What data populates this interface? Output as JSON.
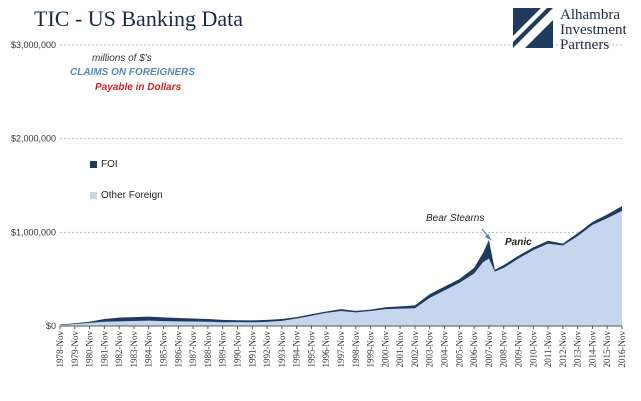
{
  "header": {
    "title": "TIC - US Banking Data"
  },
  "logo": {
    "line1": "Alhambra",
    "line2": "Investment",
    "line3": "Partners"
  },
  "notes": {
    "units": "millions of $'s",
    "subtitle": "CLAIMS  ON FOREIGNERS",
    "payable": "Payable  in Dollars"
  },
  "annotations": {
    "bear": "Bear Stearns",
    "panic": "Panic"
  },
  "colors": {
    "foi": "#1f3a5f",
    "other": "#c5d6ee",
    "grid": "#bbbbbb"
  },
  "chart_data": {
    "type": "area",
    "title": "TIC - US Banking Data",
    "ylim": [
      0,
      3000000
    ],
    "yticks": [
      0,
      1000000,
      2000000,
      3000000
    ],
    "ytick_labels": [
      "$0",
      "$1,000,000",
      "$2,000,000",
      "$3,000,000"
    ],
    "grid": "horizontal",
    "legend_position": "left",
    "x_tick_labels": [
      "1978-Nov",
      "1979-Nov",
      "1980-Nov",
      "1981-Nov",
      "1982-Nov",
      "1983-Nov",
      "1984-Nov",
      "1985-Nov",
      "1986-Nov",
      "1987-Nov",
      "1988-Nov",
      "1989-Nov",
      "1990-Nov",
      "1991-Nov",
      "1992-Nov",
      "1993-Nov",
      "1994-Nov",
      "1995-Nov",
      "1996-Nov",
      "1997-Nov",
      "1998-Nov",
      "1999-Nov",
      "2000-Nov",
      "2001-Nov",
      "2002-Nov",
      "2003-Nov",
      "2004-Nov",
      "2005-Nov",
      "2006-Nov",
      "2007-Nov",
      "2008-Nov",
      "2009-Nov",
      "2010-Nov",
      "2011-Nov",
      "2012-Nov",
      "2013-Nov",
      "2014-Nov",
      "2015-Nov",
      "2016-Nov"
    ],
    "x": [
      1978.9,
      1979.9,
      1980.9,
      1981.9,
      1982.9,
      1983.9,
      1984.9,
      1985.9,
      1986.9,
      1987.9,
      1988.9,
      1989.9,
      1990.9,
      1991.9,
      1992.9,
      1993.9,
      1994.9,
      1995.9,
      1996.9,
      1997.9,
      1998.9,
      1999.9,
      2000.9,
      2001.9,
      2002.9,
      2003.9,
      2004.9,
      2005.9,
      2006.9,
      2007.5,
      2007.9,
      2008.3,
      2008.9,
      2009.9,
      2010.9,
      2011.9,
      2012.9,
      2013.9,
      2014.9,
      2015.9,
      2016.9
    ],
    "series": [
      {
        "name": "Other Foreign",
        "values": [
          10000,
          22000,
          33000,
          45000,
          50000,
          53000,
          58000,
          52000,
          50000,
          48000,
          46000,
          40000,
          42000,
          40000,
          44000,
          55000,
          80000,
          110000,
          140000,
          160000,
          145000,
          160000,
          180000,
          185000,
          190000,
          300000,
          380000,
          460000,
          560000,
          680000,
          720000,
          580000,
          620000,
          720000,
          810000,
          880000,
          860000,
          960000,
          1080000,
          1150000,
          1230000
        ]
      },
      {
        "name": "FOI",
        "values": [
          15000,
          30000,
          45000,
          75000,
          90000,
          95000,
          100000,
          92000,
          85000,
          80000,
          75000,
          65000,
          62000,
          60000,
          65000,
          75000,
          95000,
          125000,
          155000,
          180000,
          162000,
          175000,
          200000,
          210000,
          220000,
          340000,
          420000,
          500000,
          620000,
          780000,
          920000,
          600000,
          650000,
          750000,
          840000,
          910000,
          880000,
          990000,
          1110000,
          1190000,
          1280000
        ]
      }
    ]
  }
}
